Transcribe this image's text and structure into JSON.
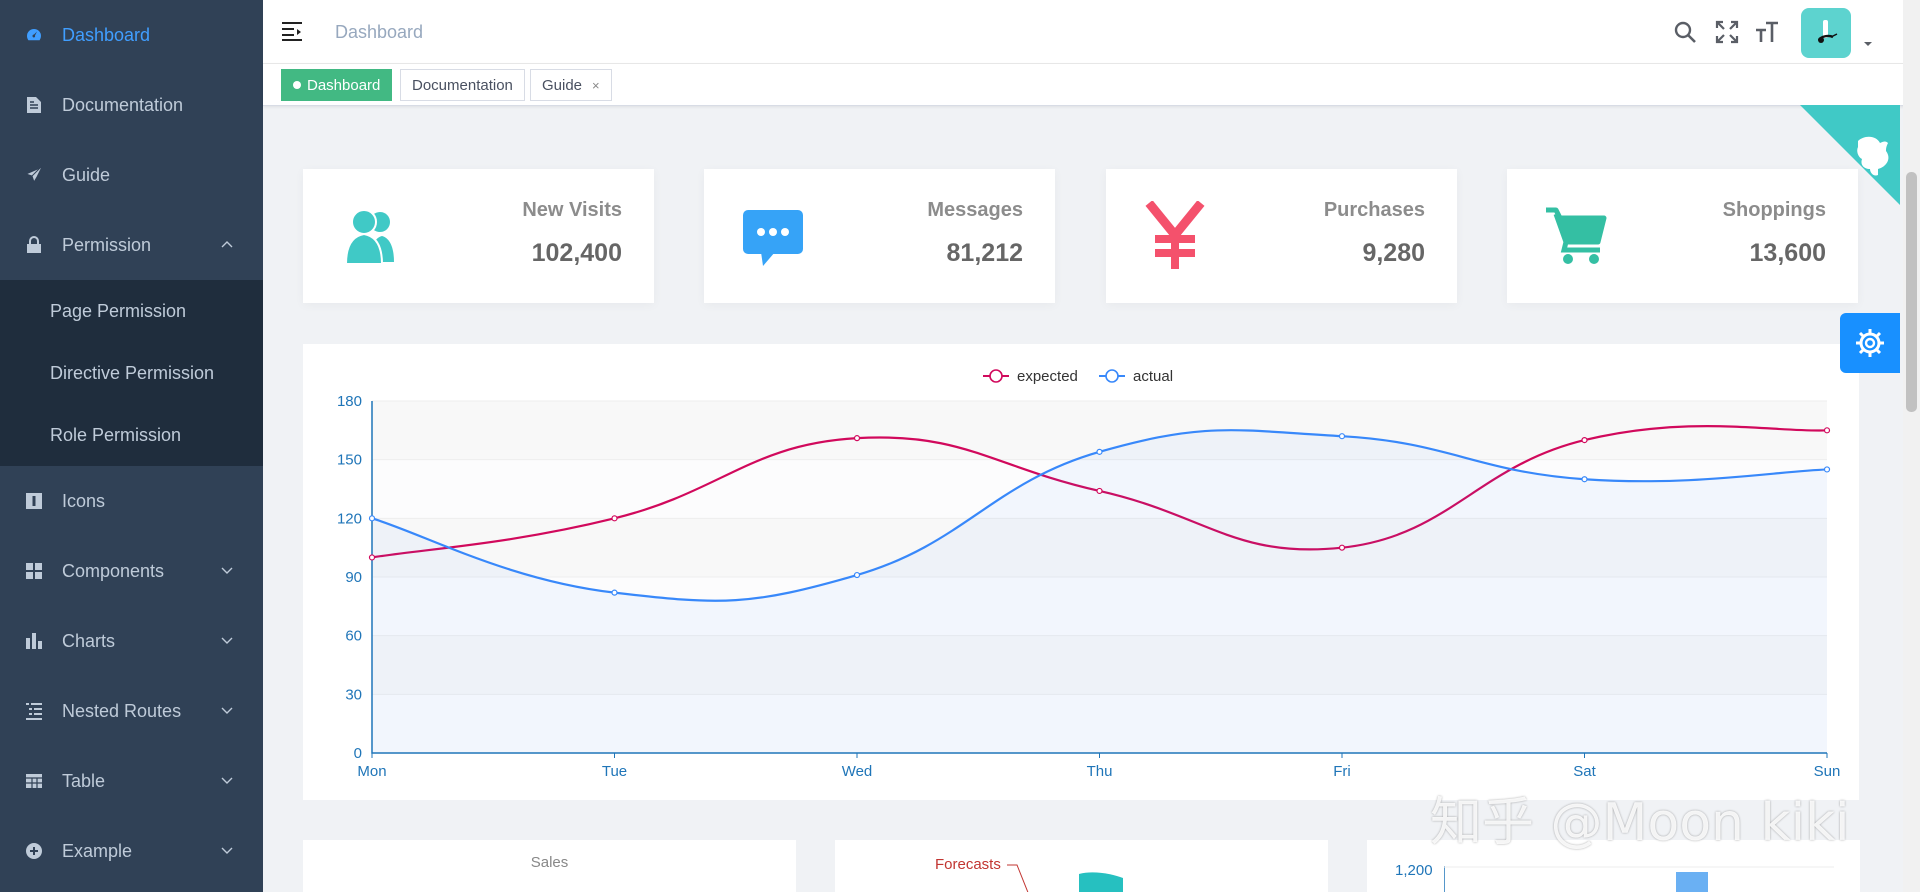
{
  "colors": {
    "sidebar_bg": "#304156",
    "submenu_bg": "#1f2d3d",
    "active": "#409eff",
    "tag_active": "#42b983",
    "expected": "#d1095c",
    "actual": "#3888fa",
    "visits": "#40c9c6",
    "messages": "#36a3f7",
    "purchases": "#f4516c",
    "shoppings": "#34bfa3"
  },
  "sidebar": {
    "items": [
      {
        "label": "Dashboard",
        "icon": "dashboard-icon"
      },
      {
        "label": "Documentation",
        "icon": "documentation-icon"
      },
      {
        "label": "Guide",
        "icon": "guide-icon"
      },
      {
        "label": "Permission",
        "icon": "lock-icon"
      },
      {
        "label": "Icons",
        "icon": "icons-icon"
      },
      {
        "label": "Components",
        "icon": "component-icon"
      },
      {
        "label": "Charts",
        "icon": "chart-icon"
      },
      {
        "label": "Nested Routes",
        "icon": "nested-icon"
      },
      {
        "label": "Table",
        "icon": "table-icon"
      },
      {
        "label": "Example",
        "icon": "example-icon"
      }
    ],
    "permission_children": [
      "Page Permission",
      "Directive Permission",
      "Role Permission"
    ]
  },
  "navbar": {
    "breadcrumb": "Dashboard"
  },
  "tags": {
    "items": [
      "Dashboard",
      "Documentation",
      "Guide"
    ],
    "close_glyph": "×"
  },
  "panels": [
    {
      "title": "New Visits",
      "value": "102,400",
      "icon": "peoples-icon"
    },
    {
      "title": "Messages",
      "value": "81,212",
      "icon": "message-icon"
    },
    {
      "title": "Purchases",
      "value": "9,280",
      "icon": "money-icon"
    },
    {
      "title": "Shoppings",
      "value": "13,600",
      "icon": "shopping-icon"
    }
  ],
  "chart_data": {
    "type": "line",
    "categories": [
      "Mon",
      "Tue",
      "Wed",
      "Thu",
      "Fri",
      "Sat",
      "Sun"
    ],
    "series": [
      {
        "name": "expected",
        "values": [
          100,
          120,
          161,
          134,
          105,
          160,
          165
        ]
      },
      {
        "name": "actual",
        "values": [
          120,
          82,
          91,
          154,
          162,
          140,
          145
        ]
      }
    ],
    "ylim": [
      0,
      180
    ],
    "yticks": [
      0,
      30,
      60,
      90,
      120,
      150,
      180
    ],
    "legend": "top-center",
    "grid": true
  },
  "bottom": {
    "sales_title": "Sales",
    "forecast_label": "Forecasts",
    "bar_tick": "1,200"
  },
  "watermark": "知乎 @Moon kiki"
}
